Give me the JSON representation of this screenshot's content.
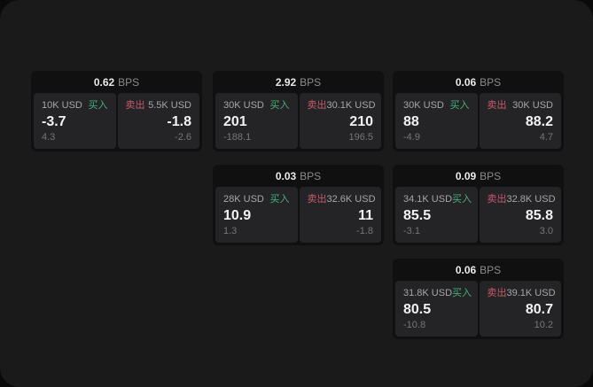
{
  "labels": {
    "bps_unit": "BPS",
    "buy": "买入",
    "sell": "卖出"
  },
  "colors": {
    "buy_green": "#45b17a",
    "sell_red": "#c75a6c",
    "app_background": "#1a1a1b",
    "card_background": "#101011",
    "panel_background": "#242426"
  },
  "cards": [
    {
      "bps": "0.62",
      "col": 0,
      "row": 0,
      "buy": {
        "amount": "10K USD",
        "value": "-3.7",
        "delta": "4.3"
      },
      "sell": {
        "amount": "5.5K USD",
        "value": "-1.8",
        "delta": "-2.6"
      }
    },
    {
      "bps": "2.92",
      "col": 1,
      "row": 0,
      "buy": {
        "amount": "30K USD",
        "value": "201",
        "delta": "-188.1"
      },
      "sell": {
        "amount": "30.1K USD",
        "value": "210",
        "delta": "196.5"
      }
    },
    {
      "bps": "0.06",
      "col": 2,
      "row": 0,
      "buy": {
        "amount": "30K USD",
        "value": "88",
        "delta": "-4.9"
      },
      "sell": {
        "amount": "30K USD",
        "value": "88.2",
        "delta": "4.7"
      }
    },
    {
      "bps": "0.03",
      "col": 1,
      "row": 1,
      "buy": {
        "amount": "28K USD",
        "value": "10.9",
        "delta": "1.3"
      },
      "sell": {
        "amount": "32.6K USD",
        "value": "11",
        "delta": "-1.8"
      }
    },
    {
      "bps": "0.09",
      "col": 2,
      "row": 1,
      "buy": {
        "amount": "34.1K USD",
        "value": "85.5",
        "delta": "-3.1"
      },
      "sell": {
        "amount": "32.8K USD",
        "value": "85.8",
        "delta": "3.0"
      }
    },
    {
      "bps": "0.06",
      "col": 2,
      "row": 2,
      "buy": {
        "amount": "31.8K USD",
        "value": "80.5",
        "delta": "-10.8"
      },
      "sell": {
        "amount": "39.1K USD",
        "value": "80.7",
        "delta": "10.2"
      }
    }
  ]
}
